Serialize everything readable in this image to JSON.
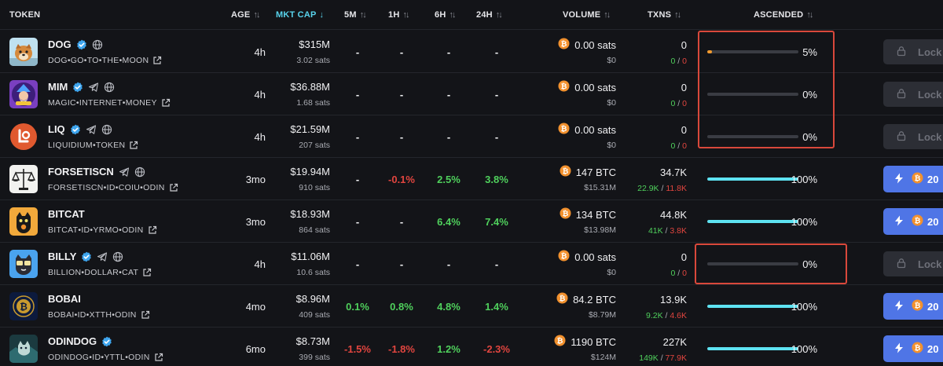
{
  "header": {
    "token": "TOKEN",
    "age": "AGE",
    "mktcap": "MKT CAP",
    "m5": "5M",
    "h1": "1H",
    "h6": "6H",
    "h24": "24H",
    "volume": "VOLUME",
    "txns": "TXNS",
    "ascended": "ASCENDED"
  },
  "colors": {
    "positive": "#4fd05c",
    "negative": "#e1453f",
    "accent": "#58d3ec",
    "buy_button": "#4f75e6",
    "highlight_box": "#d9483b",
    "progress_partial": "#f29a2e",
    "progress_full": "#5ee3f2"
  },
  "rows": [
    {
      "name": "DOG",
      "id": "DOG•GO•TO•THE•MOON",
      "verified": true,
      "telegram": false,
      "web": true,
      "age": "4h",
      "mcap": "$315M",
      "mcap_sats": "3.02 sats",
      "m5": "-",
      "h1": "-",
      "h6": "-",
      "h24": "-",
      "volume": "0.00 sats",
      "volume_usd": "$0",
      "txns": "0",
      "buys": "0",
      "sells": "0",
      "asc_label": "5%",
      "asc_progress": 0.05,
      "button": "lock",
      "button_label": "Lock"
    },
    {
      "name": "MIM",
      "id": "MAGIC•INTERNET•MONEY",
      "verified": true,
      "telegram": true,
      "web": true,
      "age": "4h",
      "mcap": "$36.88M",
      "mcap_sats": "1.68 sats",
      "m5": "-",
      "h1": "-",
      "h6": "-",
      "h24": "-",
      "volume": "0.00 sats",
      "volume_usd": "$0",
      "txns": "0",
      "buys": "0",
      "sells": "0",
      "asc_label": "0%",
      "asc_progress": 0.0,
      "button": "lock",
      "button_label": "Lock"
    },
    {
      "name": "LIQ",
      "id": "LIQUIDIUM•TOKEN",
      "verified": true,
      "telegram": true,
      "web": true,
      "age": "4h",
      "mcap": "$21.59M",
      "mcap_sats": "207 sats",
      "m5": "-",
      "h1": "-",
      "h6": "-",
      "h24": "-",
      "volume": "0.00 sats",
      "volume_usd": "$0",
      "txns": "0",
      "buys": "0",
      "sells": "0",
      "asc_label": "0%",
      "asc_progress": 0.0,
      "button": "lock",
      "button_label": "Lock"
    },
    {
      "name": "FORSETISCN",
      "id": "FORSETISCN•ID•COIU•ODIN",
      "verified": false,
      "telegram": true,
      "web": true,
      "age": "3mo",
      "mcap": "$19.94M",
      "mcap_sats": "910 sats",
      "m5": "-",
      "h1": "-0.1%",
      "h6": "2.5%",
      "h24": "3.8%",
      "volume": "147 BTC",
      "volume_usd": "$15.31M",
      "txns": "34.7K",
      "buys": "22.9K",
      "sells": "11.8K",
      "asc_label": "100%",
      "asc_progress": 1.0,
      "button": "buy",
      "button_label": "20"
    },
    {
      "name": "BITCAT",
      "id": "BITCAT•ID•YRMO•ODIN",
      "verified": false,
      "telegram": false,
      "web": false,
      "age": "3mo",
      "mcap": "$18.93M",
      "mcap_sats": "864 sats",
      "m5": "-",
      "h1": "-",
      "h6": "6.4%",
      "h24": "7.4%",
      "volume": "134 BTC",
      "volume_usd": "$13.98M",
      "txns": "44.8K",
      "buys": "41K",
      "sells": "3.8K",
      "asc_label": "100%",
      "asc_progress": 1.0,
      "button": "buy",
      "button_label": "20"
    },
    {
      "name": "BILLY",
      "id": "BILLION•DOLLAR•CAT",
      "verified": true,
      "telegram": true,
      "web": true,
      "age": "4h",
      "mcap": "$11.06M",
      "mcap_sats": "10.6 sats",
      "m5": "-",
      "h1": "-",
      "h6": "-",
      "h24": "-",
      "volume": "0.00 sats",
      "volume_usd": "$0",
      "txns": "0",
      "buys": "0",
      "sells": "0",
      "asc_label": "0%",
      "asc_progress": 0.0,
      "button": "lock",
      "button_label": "Lock"
    },
    {
      "name": "BOBAI",
      "id": "BOBAI•ID•XTTH•ODIN",
      "verified": false,
      "telegram": false,
      "web": false,
      "age": "4mo",
      "mcap": "$8.96M",
      "mcap_sats": "409 sats",
      "m5": "0.1%",
      "h1": "0.8%",
      "h6": "4.8%",
      "h24": "1.4%",
      "volume": "84.2 BTC",
      "volume_usd": "$8.79M",
      "txns": "13.9K",
      "buys": "9.2K",
      "sells": "4.6K",
      "asc_label": "100%",
      "asc_progress": 1.0,
      "button": "buy",
      "button_label": "20"
    },
    {
      "name": "ODINDOG",
      "id": "ODINDOG•ID•YTTL•ODIN",
      "verified": true,
      "telegram": false,
      "web": false,
      "age": "6mo",
      "mcap": "$8.73M",
      "mcap_sats": "399 sats",
      "m5": "-1.5%",
      "h1": "-1.8%",
      "h6": "1.2%",
      "h24": "-2.3%",
      "volume": "1190 BTC",
      "volume_usd": "$124M",
      "txns": "227K",
      "buys": "149K",
      "sells": "77.9K",
      "asc_label": "100%",
      "asc_progress": 1.0,
      "button": "buy",
      "button_label": "20"
    }
  ]
}
